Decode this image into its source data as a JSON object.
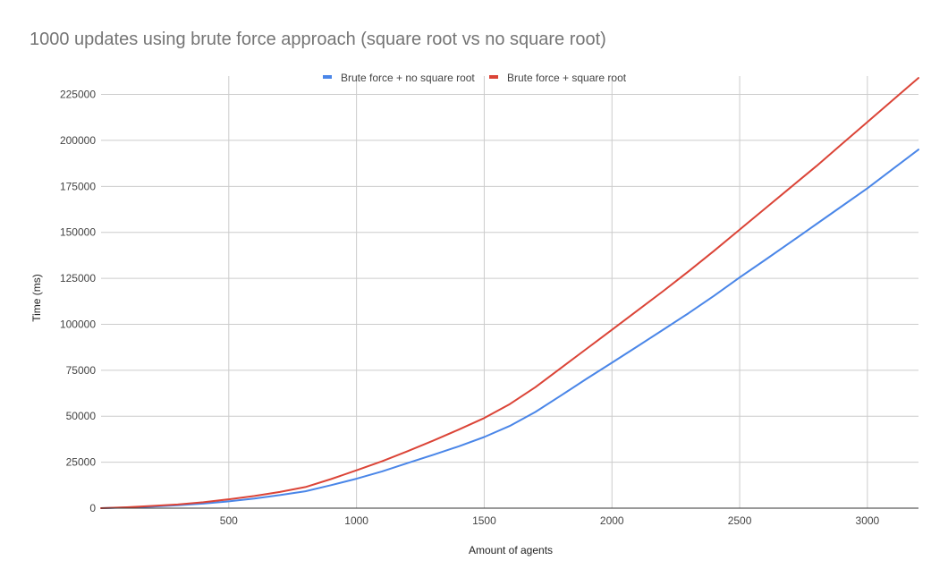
{
  "chart_data": {
    "type": "line",
    "title": "1000 updates using brute force approach (square root vs no square root)",
    "xlabel": "Amount of agents",
    "ylabel": "Time (ms)",
    "xlim": [
      0,
      3200
    ],
    "ylim": [
      0,
      235000
    ],
    "x_ticks": [
      "500",
      "1000",
      "1500",
      "2000",
      "2500",
      "3000"
    ],
    "x_tick_values": [
      500,
      1000,
      1500,
      2000,
      2500,
      3000
    ],
    "y_ticks": [
      "0",
      "25000",
      "50000",
      "75000",
      "100000",
      "125000",
      "150000",
      "175000",
      "200000",
      "225000"
    ],
    "y_tick_values": [
      0,
      25000,
      50000,
      75000,
      100000,
      125000,
      150000,
      175000,
      200000,
      225000
    ],
    "grid": true,
    "legend_position": "top",
    "series": [
      {
        "name": "Brute force + no square root",
        "color": "#4a86e8",
        "x": [
          0,
          100,
          200,
          300,
          400,
          500,
          600,
          700,
          800,
          900,
          1000,
          1100,
          1200,
          1300,
          1400,
          1500,
          1600,
          1700,
          1800,
          1900,
          2000,
          2100,
          2200,
          2300,
          2400,
          2500,
          2600,
          2700,
          2800,
          2900,
          3000,
          3100,
          3200
        ],
        "y": [
          0,
          400,
          900,
          1600,
          2500,
          3700,
          5200,
          7100,
          9200,
          12500,
          16000,
          20000,
          24500,
          29000,
          33600,
          38700,
          44700,
          52300,
          61200,
          70300,
          79100,
          88000,
          97000,
          106000,
          115500,
          125500,
          135000,
          144700,
          154500,
          164200,
          174000,
          184500,
          195000
        ]
      },
      {
        "name": "Brute force + square root",
        "color": "#db4437",
        "x": [
          0,
          100,
          200,
          300,
          400,
          500,
          600,
          700,
          800,
          900,
          1000,
          1100,
          1200,
          1300,
          1400,
          1500,
          1600,
          1700,
          1800,
          1900,
          2000,
          2100,
          2200,
          2300,
          2400,
          2500,
          2600,
          2700,
          2800,
          2900,
          3000,
          3100,
          3200
        ],
        "y": [
          0,
          500,
          1200,
          2000,
          3200,
          4800,
          6600,
          8800,
          11500,
          15800,
          20600,
          25500,
          31000,
          36700,
          42700,
          49000,
          56600,
          65800,
          76200,
          86600,
          97000,
          107500,
          118000,
          128800,
          140000,
          151500,
          163000,
          174500,
          186000,
          198000,
          210000,
          222000,
          234000
        ]
      }
    ]
  }
}
